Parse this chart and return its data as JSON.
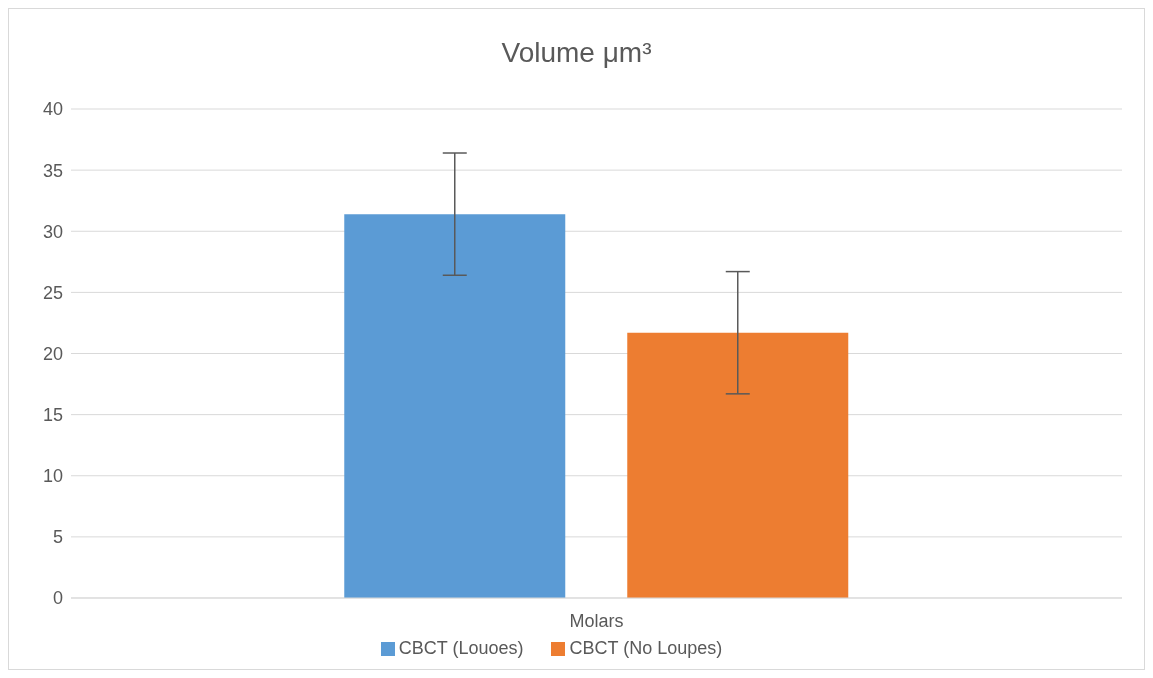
{
  "chart_data": {
    "type": "bar",
    "title": "Volume μm³",
    "categories": [
      "Molars"
    ],
    "series": [
      {
        "name": "CBCT (Louoes)",
        "color": "#5b9bd5",
        "values": [
          31.4
        ],
        "errors": [
          5
        ]
      },
      {
        "name": "CBCT (No Loupes)",
        "color": "#ed7d31",
        "values": [
          21.7
        ],
        "errors": [
          5
        ]
      }
    ],
    "ylim": [
      0,
      40
    ],
    "yticks": [
      0,
      5,
      10,
      15,
      20,
      25,
      30,
      35,
      40
    ],
    "grid": "y",
    "legend": "bottom"
  }
}
